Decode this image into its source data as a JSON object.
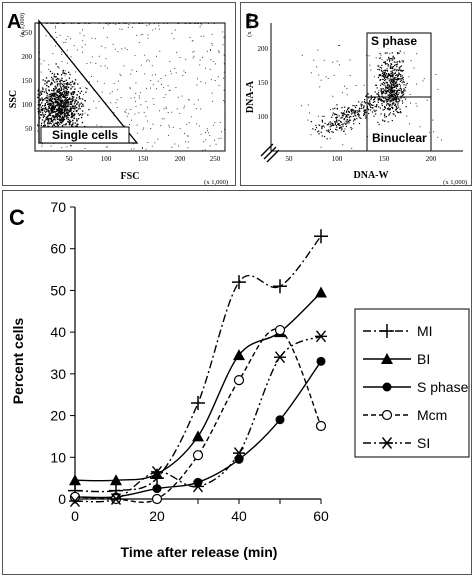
{
  "panel_a": {
    "letter": "A",
    "y_multiplier": "(x 1,000)",
    "x_multiplier": "(x 1,000)",
    "ylabel": "SSC",
    "xlabel": "FSC",
    "y_ticks": [
      "50",
      "100",
      "150",
      "200",
      "250"
    ],
    "x_ticks": [
      "50",
      "100",
      "150",
      "200",
      "250"
    ],
    "gate_label": "Single cells"
  },
  "panel_b": {
    "letter": "B",
    "y_multiplier": "(x 1,000)",
    "x_multiplier": "(x 1,000)",
    "ylabel": "DNA-A",
    "xlabel": "DNA-W",
    "y_ticks": [
      "100",
      "150",
      "200"
    ],
    "x_ticks": [
      "50",
      "100",
      "150",
      "200"
    ],
    "gate_top_label": "S phase",
    "gate_bottom_label": "Binuclear"
  },
  "chart_data": {
    "type": "line",
    "panel_letter": "C",
    "xlabel": "Time after release (min)",
    "ylabel": "Percent cells",
    "x": [
      0,
      10,
      20,
      30,
      40,
      50,
      60
    ],
    "xlim": [
      0,
      60
    ],
    "ylim": [
      0,
      70
    ],
    "x_ticks": [
      "0",
      "20",
      "40",
      "60"
    ],
    "y_ticks": [
      "0",
      "10",
      "20",
      "30",
      "40",
      "50",
      "60",
      "70"
    ],
    "grid": false,
    "legend_position": "right",
    "series": [
      {
        "name": "MI",
        "marker": "plus",
        "line": "dash-dot",
        "values": [
          2,
          2,
          5,
          23,
          52,
          51,
          63
        ]
      },
      {
        "name": "BI",
        "marker": "filled-triangle",
        "line": "solid",
        "values": [
          4.5,
          4.5,
          6,
          15,
          34.5,
          40,
          49.5
        ]
      },
      {
        "name": "S phase",
        "marker": "filled-circle",
        "line": "solid",
        "values": [
          0.5,
          0.5,
          2.5,
          4,
          9.5,
          19,
          33
        ]
      },
      {
        "name": "Mcm",
        "marker": "open-circle",
        "line": "dashed",
        "values": [
          0.5,
          0,
          0,
          10.5,
          28.5,
          40.5,
          17.5
        ]
      },
      {
        "name": "SI",
        "marker": "asterisk",
        "line": "dash-dot-dot",
        "values": [
          -0.5,
          0,
          6.5,
          3,
          11,
          34,
          39
        ]
      }
    ]
  }
}
